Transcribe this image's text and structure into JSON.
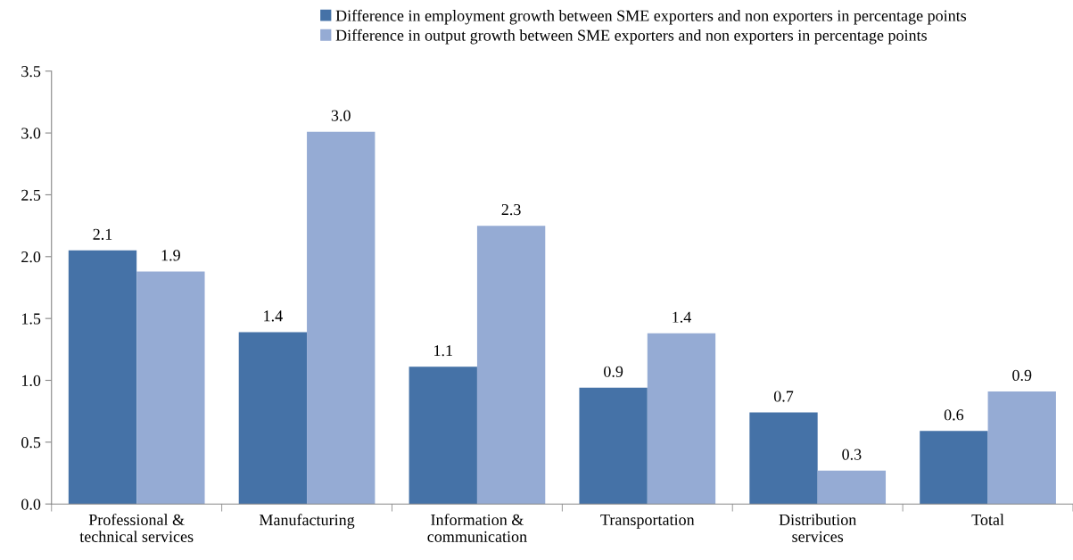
{
  "chart_data": {
    "type": "bar",
    "categories": [
      "Professional &\ntechnical services",
      "Manufacturing",
      "Information &\ncommunication",
      "Transportation",
      "Distribution\nservices",
      "Total"
    ],
    "series": [
      {
        "name": "Difference in employment growth between SME exporters and non exporters in percentage points",
        "color": "#4572a7",
        "values": [
          2.05,
          1.39,
          1.11,
          0.94,
          0.74,
          0.59
        ],
        "value_labels": [
          "2.1",
          "1.4",
          "1.1",
          "0.9",
          "0.7",
          "0.6"
        ]
      },
      {
        "name": "Difference in output growth between SME exporters and non exporters in percentage points",
        "color": "#95abd4",
        "values": [
          1.88,
          3.01,
          2.25,
          1.38,
          0.27,
          0.91
        ],
        "value_labels": [
          "1.9",
          "3.0",
          "2.3",
          "1.4",
          "0.3",
          "0.9"
        ]
      }
    ],
    "ylim": [
      0,
      3.5
    ],
    "yticks": [
      {
        "value": 0,
        "label": "0.0"
      },
      {
        "value": 0.5,
        "label": "0.5"
      },
      {
        "value": 1,
        "label": "1.0"
      },
      {
        "value": 1.5,
        "label": "1.5"
      },
      {
        "value": 2,
        "label": "2.0"
      },
      {
        "value": 2.5,
        "label": "2.5"
      },
      {
        "value": 3,
        "label": "3.0"
      },
      {
        "value": 3.5,
        "label": "3.5"
      }
    ],
    "grid": false,
    "legend": "top"
  }
}
